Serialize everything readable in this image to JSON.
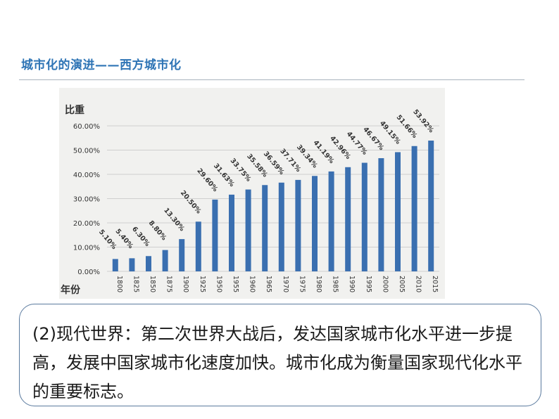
{
  "header": {
    "title": "城市化的演进——西方城市化"
  },
  "note": {
    "text": "(2)现代世界：第二次世界大战后，发达国家城市化水平进一步提高，发展中国家城市化速度加快。城市化成为衡量国家现代化水平的重要标志。"
  },
  "chart_data": {
    "type": "bar",
    "ylabel": "比重",
    "xlabel": "年份",
    "ylim": [
      0,
      60
    ],
    "y_ticks": [
      "0.00%",
      "10.00%",
      "20.00%",
      "30.00%",
      "40.00%",
      "50.00%",
      "60.00%"
    ],
    "grid": true,
    "bar_color": "#3a6fb0",
    "categories": [
      "1800",
      "1825",
      "1850",
      "1875",
      "1900",
      "1925",
      "1950",
      "1955",
      "1960",
      "1965",
      "1970",
      "1975",
      "1980",
      "1985",
      "1990",
      "1995",
      "2000",
      "2005",
      "2010",
      "2015"
    ],
    "values": [
      5.1,
      5.4,
      6.3,
      8.8,
      13.3,
      20.5,
      29.6,
      31.63,
      33.75,
      35.58,
      36.59,
      37.71,
      39.34,
      41.19,
      42.96,
      44.77,
      46.67,
      49.15,
      51.66,
      53.92
    ],
    "data_labels": [
      "5.10%",
      "5.40%",
      "6.30%",
      "8.80%",
      "13.30%",
      "20.50%",
      "29.60%",
      "31.63%",
      "33.75%",
      "35.58%",
      "36.59%",
      "37.71%",
      "39.34%",
      "41.19%",
      "42.96%",
      "44.77%",
      "46.67%",
      "49.15%",
      "51.66%",
      "53.92%"
    ]
  }
}
